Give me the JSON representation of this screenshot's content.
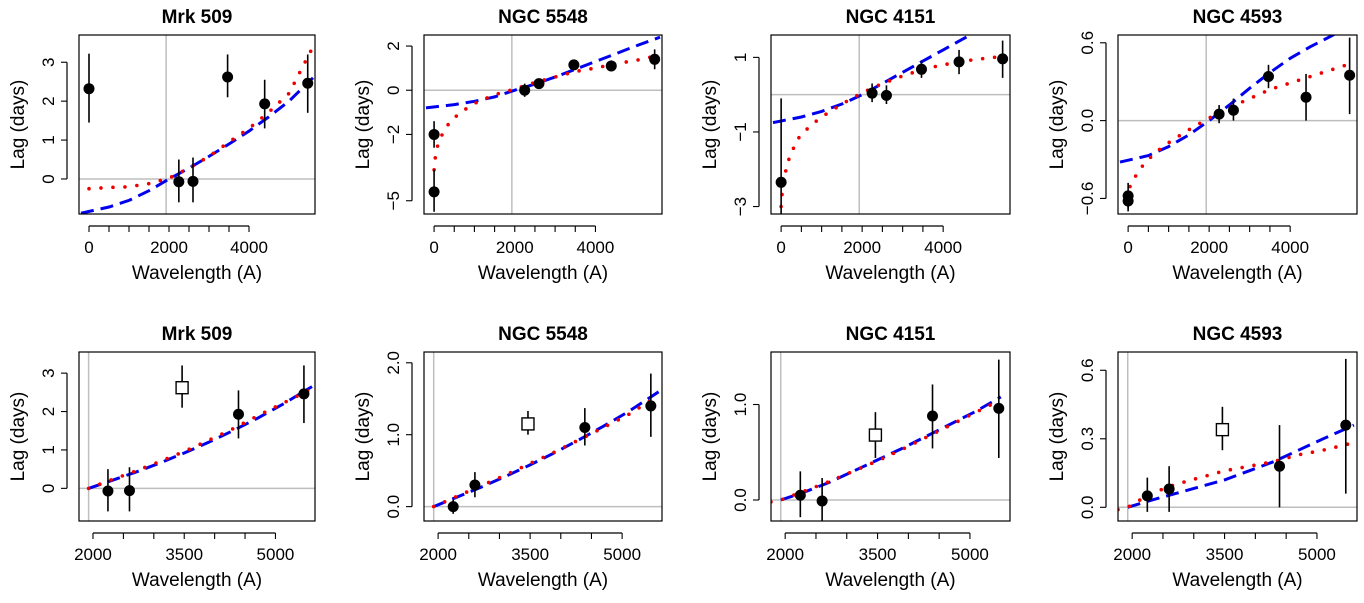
{
  "series_styles": {
    "observed": {
      "color": "#000000"
    },
    "blue_fit": {
      "color": "#0000ee"
    },
    "red_fit": {
      "color": "#ee0000"
    },
    "reference_line": {
      "color": "#bebebe"
    }
  },
  "chart_data": [
    {
      "type": "scatter",
      "title": "Mrk 509",
      "xlabel": "Wavelength (A)",
      "ylabel": "Lag (days)",
      "xlim": [
        -250,
        5650
      ],
      "ylim": [
        -0.9,
        3.7
      ],
      "xticks": [
        "0",
        "2000",
        "4000"
      ],
      "xtick_values": [
        0,
        2000,
        4000
      ],
      "yticks": [
        "0",
        "1",
        "2",
        "3"
      ],
      "ytick_values": [
        0,
        1,
        2,
        3
      ],
      "hline": 0,
      "vline": 1928,
      "points": [
        {
          "x": 0,
          "y": 2.32,
          "lo": 1.45,
          "hi": 3.22,
          "marker": "filled"
        },
        {
          "x": 2246,
          "y": -0.07,
          "lo": -0.6,
          "hi": 0.5,
          "marker": "filled"
        },
        {
          "x": 2600,
          "y": -0.06,
          "lo": -0.6,
          "hi": 0.55,
          "marker": "filled"
        },
        {
          "x": 3465,
          "y": 2.62,
          "lo": 2.1,
          "hi": 3.2,
          "marker": "filled"
        },
        {
          "x": 4392,
          "y": 1.93,
          "lo": 1.3,
          "hi": 2.55,
          "marker": "filled"
        },
        {
          "x": 5468,
          "y": 2.46,
          "lo": 1.7,
          "hi": 3.2,
          "marker": "filled"
        }
      ],
      "blue_curve": {
        "x": [
          -200,
          500,
          1000,
          1500,
          2000,
          2500,
          3000,
          3500,
          4000,
          4500,
          5000,
          5600
        ],
        "y": [
          -0.88,
          -0.72,
          -0.55,
          -0.3,
          0.0,
          0.28,
          0.58,
          0.9,
          1.23,
          1.6,
          2.0,
          2.6
        ]
      },
      "red_curve": {
        "x": [
          0,
          500,
          1000,
          1500,
          2000,
          2500,
          3000,
          3500,
          4000,
          4500,
          5000,
          5550
        ],
        "y": [
          -0.25,
          -0.22,
          -0.2,
          -0.12,
          0.02,
          0.28,
          0.58,
          0.95,
          1.3,
          1.72,
          2.2,
          3.3
        ]
      }
    },
    {
      "type": "scatter",
      "title": "NGC 5548",
      "xlabel": "Wavelength (A)",
      "ylabel": "Lag (days)",
      "xlim": [
        -250,
        5650
      ],
      "ylim": [
        -5.6,
        2.5
      ],
      "xticks": [
        "0",
        "2000",
        "4000"
      ],
      "xtick_values": [
        0,
        2000,
        4000
      ],
      "yticks": [
        "−5",
        "−2",
        "0",
        "2"
      ],
      "ytick_values": [
        -5,
        -2,
        0,
        2
      ],
      "hline": 0,
      "vline": 1928,
      "points": [
        {
          "x": 0,
          "y": -4.6,
          "lo": -5.5,
          "hi": -3.6,
          "marker": "filled"
        },
        {
          "x": 0,
          "y": -2.0,
          "lo": -2.6,
          "hi": -1.4,
          "marker": "filled"
        },
        {
          "x": 2246,
          "y": 0.0,
          "lo": -0.3,
          "hi": 0.3,
          "marker": "filled"
        },
        {
          "x": 2600,
          "y": 0.3,
          "lo": 0.1,
          "hi": 0.5,
          "marker": "filled"
        },
        {
          "x": 3465,
          "y": 1.15,
          "lo": 0.95,
          "hi": 1.35,
          "marker": "filled"
        },
        {
          "x": 4392,
          "y": 1.1,
          "lo": 0.85,
          "hi": 1.35,
          "marker": "filled"
        },
        {
          "x": 5468,
          "y": 1.4,
          "lo": 0.95,
          "hi": 1.85,
          "marker": "filled"
        }
      ],
      "blue_curve": {
        "x": [
          -200,
          500,
          1000,
          1500,
          2000,
          2500,
          3000,
          3500,
          4000,
          4500,
          5000,
          5600
        ],
        "y": [
          -0.8,
          -0.65,
          -0.5,
          -0.3,
          0.0,
          0.28,
          0.6,
          0.95,
          1.3,
          1.65,
          2.0,
          2.4
        ]
      },
      "red_curve": {
        "x": [
          0,
          50,
          200,
          400,
          700,
          1000,
          1500,
          2000,
          2500,
          3000,
          3500,
          4000,
          4500,
          5000,
          5500
        ],
        "y": [
          -3.6,
          -2.7,
          -2.0,
          -1.4,
          -0.95,
          -0.6,
          -0.2,
          0.05,
          0.35,
          0.6,
          0.85,
          1.0,
          1.2,
          1.35,
          1.55
        ]
      }
    },
    {
      "type": "scatter",
      "title": "NGC 4151",
      "xlabel": "Wavelength (A)",
      "ylabel": "Lag (days)",
      "xlim": [
        -250,
        5650
      ],
      "ylim": [
        -3.2,
        1.6
      ],
      "xticks": [
        "0",
        "2000",
        "4000"
      ],
      "xtick_values": [
        0,
        2000,
        4000
      ],
      "yticks": [
        "−3",
        "−1",
        "1"
      ],
      "ytick_values": [
        -3,
        -1,
        1
      ],
      "hline": 0,
      "vline": 1928,
      "points": [
        {
          "x": 0,
          "y": -2.35,
          "lo": -3.2,
          "hi": -0.1,
          "marker": "filled"
        },
        {
          "x": 2246,
          "y": 0.04,
          "lo": -0.2,
          "hi": 0.3,
          "marker": "filled"
        },
        {
          "x": 2600,
          "y": -0.02,
          "lo": -0.25,
          "hi": 0.25,
          "marker": "filled"
        },
        {
          "x": 3465,
          "y": 0.68,
          "lo": 0.45,
          "hi": 0.92,
          "marker": "filled"
        },
        {
          "x": 4392,
          "y": 0.88,
          "lo": 0.55,
          "hi": 1.2,
          "marker": "filled"
        },
        {
          "x": 5468,
          "y": 0.96,
          "lo": 0.45,
          "hi": 1.45,
          "marker": "filled"
        }
      ],
      "blue_curve": {
        "x": [
          -200,
          500,
          1000,
          1500,
          2000,
          2500,
          3000,
          3500,
          4000,
          4500,
          5000,
          5600
        ],
        "y": [
          -0.75,
          -0.6,
          -0.45,
          -0.25,
          0.0,
          0.3,
          0.6,
          0.9,
          1.2,
          1.5,
          1.8,
          2.2
        ]
      },
      "red_curve": {
        "x": [
          0,
          50,
          200,
          400,
          700,
          1000,
          1500,
          2000,
          2500,
          3000,
          3500,
          4000,
          4500,
          5000,
          5500
        ],
        "y": [
          -3.0,
          -2.3,
          -1.7,
          -1.2,
          -0.85,
          -0.6,
          -0.25,
          0.05,
          0.3,
          0.5,
          0.68,
          0.8,
          0.9,
          0.97,
          1.03
        ]
      }
    },
    {
      "type": "scatter",
      "title": "NGC 4593",
      "xlabel": "Wavelength (A)",
      "ylabel": "Lag (days)",
      "xlim": [
        -250,
        5650
      ],
      "ylim": [
        -0.72,
        0.66
      ],
      "xticks": [
        "0",
        "2000",
        "4000"
      ],
      "xtick_values": [
        0,
        2000,
        4000
      ],
      "yticks": [
        "−0.6",
        "0.0",
        "0.6"
      ],
      "ytick_values": [
        -0.6,
        0.0,
        0.6
      ],
      "hline": 0,
      "vline": 1928,
      "points": [
        {
          "x": 0,
          "y": -0.58,
          "lo": -0.68,
          "hi": -0.48,
          "marker": "filled"
        },
        {
          "x": 0,
          "y": -0.62,
          "lo": -0.7,
          "hi": -0.55,
          "marker": "filled"
        },
        {
          "x": 2246,
          "y": 0.05,
          "lo": -0.02,
          "hi": 0.12,
          "marker": "filled"
        },
        {
          "x": 2600,
          "y": 0.08,
          "lo": 0.0,
          "hi": 0.17,
          "marker": "filled"
        },
        {
          "x": 3465,
          "y": 0.34,
          "lo": 0.25,
          "hi": 0.43,
          "marker": "filled"
        },
        {
          "x": 4392,
          "y": 0.18,
          "lo": 0.0,
          "hi": 0.36,
          "marker": "filled"
        },
        {
          "x": 5468,
          "y": 0.35,
          "lo": 0.05,
          "hi": 0.64,
          "marker": "filled"
        }
      ],
      "blue_curve": {
        "x": [
          -200,
          500,
          1000,
          1500,
          2000,
          2500,
          3000,
          3500,
          4000,
          4500,
          5000,
          5600
        ],
        "y": [
          -0.32,
          -0.27,
          -0.2,
          -0.11,
          0.0,
          0.12,
          0.25,
          0.37,
          0.48,
          0.57,
          0.65,
          0.75
        ]
      },
      "red_curve": {
        "x": [
          0,
          50,
          200,
          400,
          700,
          1000,
          1500,
          2000,
          2500,
          3000,
          3500,
          4000,
          4500,
          5000,
          5500
        ],
        "y": [
          -0.6,
          -0.5,
          -0.42,
          -0.33,
          -0.24,
          -0.17,
          -0.07,
          0.02,
          0.1,
          0.17,
          0.24,
          0.29,
          0.34,
          0.39,
          0.44
        ]
      }
    },
    {
      "type": "scatter",
      "title": "Mrk 509",
      "xlabel": "Wavelength (A)",
      "ylabel": "Lag (days)",
      "xlim": [
        1770,
        5650
      ],
      "ylim": [
        -0.85,
        3.55
      ],
      "xticks": [
        "2000",
        "3500",
        "5000"
      ],
      "xtick_values": [
        2000,
        3500,
        5000
      ],
      "yticks": [
        "0",
        "1",
        "2",
        "3"
      ],
      "ytick_values": [
        0,
        1,
        2,
        3
      ],
      "hline": 0,
      "vline": 1928,
      "points": [
        {
          "x": 2246,
          "y": -0.07,
          "lo": -0.6,
          "hi": 0.5,
          "marker": "filled"
        },
        {
          "x": 2600,
          "y": -0.06,
          "lo": -0.6,
          "hi": 0.55,
          "marker": "filled"
        },
        {
          "x": 3465,
          "y": 2.62,
          "lo": 2.1,
          "hi": 3.2,
          "marker": "open-square"
        },
        {
          "x": 4392,
          "y": 1.93,
          "lo": 1.3,
          "hi": 2.55,
          "marker": "filled"
        },
        {
          "x": 5468,
          "y": 2.46,
          "lo": 1.7,
          "hi": 3.2,
          "marker": "filled"
        }
      ],
      "blue_curve": {
        "x": [
          1928,
          2300,
          2700,
          3100,
          3500,
          3900,
          4300,
          4700,
          5100,
          5600
        ],
        "y": [
          0.0,
          0.2,
          0.42,
          0.66,
          0.92,
          1.2,
          1.5,
          1.82,
          2.17,
          2.65
        ]
      },
      "red_curve": {
        "x": [
          1928,
          2300,
          2700,
          3100,
          3500,
          3900,
          4300,
          4700,
          5100,
          5550
        ],
        "y": [
          0.0,
          0.22,
          0.45,
          0.7,
          0.96,
          1.25,
          1.55,
          1.88,
          2.2,
          2.55
        ]
      }
    },
    {
      "type": "scatter",
      "title": "NGC 5548",
      "xlabel": "Wavelength (A)",
      "ylabel": "Lag (days)",
      "xlim": [
        1770,
        5650
      ],
      "ylim": [
        -0.2,
        2.15
      ],
      "xticks": [
        "2000",
        "3500",
        "5000"
      ],
      "xtick_values": [
        2000,
        3500,
        5000
      ],
      "yticks": [
        "0.0",
        "1.0",
        "2.0"
      ],
      "ytick_values": [
        0.0,
        1.0,
        2.0
      ],
      "hline": 0,
      "vline": 1928,
      "points": [
        {
          "x": 2246,
          "y": 0.0,
          "lo": -0.1,
          "hi": 0.1,
          "marker": "filled"
        },
        {
          "x": 2600,
          "y": 0.3,
          "lo": 0.13,
          "hi": 0.48,
          "marker": "filled"
        },
        {
          "x": 3465,
          "y": 1.15,
          "lo": 1.0,
          "hi": 1.33,
          "marker": "open-square"
        },
        {
          "x": 4392,
          "y": 1.1,
          "lo": 0.85,
          "hi": 1.37,
          "marker": "filled"
        },
        {
          "x": 5468,
          "y": 1.4,
          "lo": 0.97,
          "hi": 1.85,
          "marker": "filled"
        }
      ],
      "blue_curve": {
        "x": [
          1928,
          2300,
          2700,
          3100,
          3500,
          3900,
          4300,
          4700,
          5100,
          5600
        ],
        "y": [
          0.0,
          0.13,
          0.27,
          0.42,
          0.58,
          0.75,
          0.93,
          1.12,
          1.32,
          1.6
        ]
      },
      "red_curve": {
        "x": [
          1928,
          2300,
          2700,
          3100,
          3500,
          3900,
          4300,
          4700,
          5100,
          5550
        ],
        "y": [
          0.0,
          0.14,
          0.29,
          0.44,
          0.6,
          0.76,
          0.93,
          1.1,
          1.28,
          1.52
        ]
      }
    },
    {
      "type": "scatter",
      "title": "NGC 4151",
      "xlabel": "Wavelength (A)",
      "ylabel": "Lag (days)",
      "xlim": [
        1770,
        5650
      ],
      "ylim": [
        -0.22,
        1.55
      ],
      "xticks": [
        "2000",
        "3500",
        "5000"
      ],
      "xtick_values": [
        2000,
        3500,
        5000
      ],
      "yticks": [
        "0.0",
        "1.0"
      ],
      "ytick_values": [
        0.0,
        1.0
      ],
      "hline": 0,
      "vline": 1928,
      "points": [
        {
          "x": 2246,
          "y": 0.05,
          "lo": -0.18,
          "hi": 0.3,
          "marker": "filled"
        },
        {
          "x": 2600,
          "y": -0.01,
          "lo": -0.22,
          "hi": 0.23,
          "marker": "filled"
        },
        {
          "x": 3465,
          "y": 0.68,
          "lo": 0.44,
          "hi": 0.92,
          "marker": "open-square"
        },
        {
          "x": 4392,
          "y": 0.88,
          "lo": 0.54,
          "hi": 1.21,
          "marker": "filled"
        },
        {
          "x": 5468,
          "y": 0.96,
          "lo": 0.44,
          "hi": 1.47,
          "marker": "filled"
        }
      ],
      "blue_curve": {
        "x": [
          1928,
          2300,
          2700,
          3100,
          3500,
          3900,
          4300,
          4700,
          5100,
          5500
        ],
        "y": [
          0.0,
          0.08,
          0.18,
          0.3,
          0.42,
          0.54,
          0.67,
          0.8,
          0.93,
          1.08
        ]
      },
      "red_curve": {
        "x": [
          1770,
          1928,
          2300,
          2700,
          3100,
          3500,
          3900,
          4300,
          4700,
          5100,
          5500
        ],
        "y": [
          -0.02,
          0.0,
          0.09,
          0.19,
          0.3,
          0.41,
          0.53,
          0.66,
          0.79,
          0.92,
          1.05
        ]
      }
    },
    {
      "type": "scatter",
      "title": "NGC 4593",
      "xlabel": "Wavelength (A)",
      "ylabel": "Lag (days)",
      "xlim": [
        1770,
        5650
      ],
      "ylim": [
        -0.06,
        0.68
      ],
      "xticks": [
        "2000",
        "3500",
        "5000"
      ],
      "xtick_values": [
        2000,
        3500,
        5000
      ],
      "yticks": [
        "0.0",
        "0.3",
        "0.6"
      ],
      "ytick_values": [
        0.0,
        0.3,
        0.6
      ],
      "hline": 0,
      "vline": 1928,
      "points": [
        {
          "x": 2246,
          "y": 0.05,
          "lo": -0.02,
          "hi": 0.13,
          "marker": "filled"
        },
        {
          "x": 2600,
          "y": 0.08,
          "lo": -0.02,
          "hi": 0.18,
          "marker": "filled"
        },
        {
          "x": 3465,
          "y": 0.34,
          "lo": 0.25,
          "hi": 0.44,
          "marker": "open-square"
        },
        {
          "x": 4392,
          "y": 0.18,
          "lo": 0.0,
          "hi": 0.36,
          "marker": "filled"
        },
        {
          "x": 5468,
          "y": 0.36,
          "lo": 0.06,
          "hi": 0.65,
          "marker": "filled"
        }
      ],
      "blue_curve": {
        "x": [
          1928,
          2300,
          2700,
          3100,
          3500,
          3900,
          4300,
          4700,
          5100,
          5600
        ],
        "y": [
          0.0,
          0.03,
          0.06,
          0.09,
          0.12,
          0.16,
          0.2,
          0.25,
          0.3,
          0.36
        ]
      },
      "red_curve": {
        "x": [
          1770,
          1928,
          2300,
          2700,
          3100,
          3500,
          3900,
          4300,
          4700,
          5100,
          5550
        ],
        "y": [
          -0.01,
          0.0,
          0.06,
          0.1,
          0.13,
          0.16,
          0.18,
          0.2,
          0.23,
          0.25,
          0.28
        ]
      }
    }
  ]
}
